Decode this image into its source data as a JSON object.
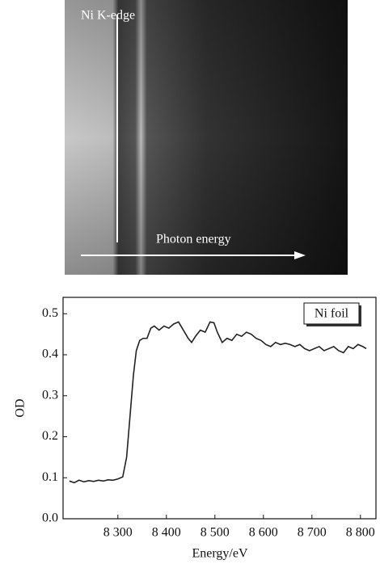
{
  "image_labels": {
    "edge": "Ni K-edge",
    "arrow": "Photon energy"
  },
  "chart_data": {
    "type": "line",
    "xlabel": "Energy/eV",
    "ylabel": "OD",
    "x": [
      8200,
      8210,
      8220,
      8230,
      8240,
      8250,
      8260,
      8270,
      8280,
      8290,
      8300,
      8310,
      8318,
      8325,
      8332,
      8338,
      8345,
      8352,
      8360,
      8368,
      8375,
      8385,
      8395,
      8405,
      8415,
      8425,
      8435,
      8445,
      8452,
      8460,
      8470,
      8480,
      8490,
      8498,
      8505,
      8515,
      8525,
      8535,
      8545,
      8555,
      8565,
      8575,
      8585,
      8595,
      8605,
      8615,
      8625,
      8635,
      8645,
      8655,
      8665,
      8675,
      8685,
      8695,
      8705,
      8715,
      8725,
      8735,
      8745,
      8755,
      8765,
      8775,
      8785,
      8795,
      8805,
      8812
    ],
    "series": [
      {
        "name": "Ni foil",
        "color": "#222222",
        "values": [
          0.092,
          0.088,
          0.094,
          0.09,
          0.093,
          0.091,
          0.094,
          0.092,
          0.095,
          0.094,
          0.097,
          0.102,
          0.15,
          0.25,
          0.35,
          0.41,
          0.435,
          0.44,
          0.44,
          0.465,
          0.47,
          0.46,
          0.47,
          0.465,
          0.475,
          0.48,
          0.46,
          0.44,
          0.43,
          0.445,
          0.46,
          0.455,
          0.48,
          0.478,
          0.455,
          0.43,
          0.44,
          0.435,
          0.45,
          0.445,
          0.455,
          0.45,
          0.44,
          0.435,
          0.425,
          0.42,
          0.43,
          0.425,
          0.428,
          0.425,
          0.42,
          0.425,
          0.415,
          0.41,
          0.415,
          0.42,
          0.41,
          0.415,
          0.42,
          0.41,
          0.405,
          0.42,
          0.415,
          0.425,
          0.42,
          0.415
        ]
      }
    ],
    "xlim": [
      8187,
      8832
    ],
    "xticks": [
      {
        "value": 8300,
        "label": "8 300"
      },
      {
        "value": 8400,
        "label": "8 400"
      },
      {
        "value": 8500,
        "label": "8 500"
      },
      {
        "value": 8600,
        "label": "8 600"
      },
      {
        "value": 8700,
        "label": "8 700"
      },
      {
        "value": 8800,
        "label": "8 800"
      }
    ],
    "ylim": [
      0,
      0.54
    ],
    "yticks": [
      {
        "value": 0,
        "label": "0.0"
      },
      0.1,
      0.2,
      0.3,
      0.4,
      0.5
    ]
  }
}
